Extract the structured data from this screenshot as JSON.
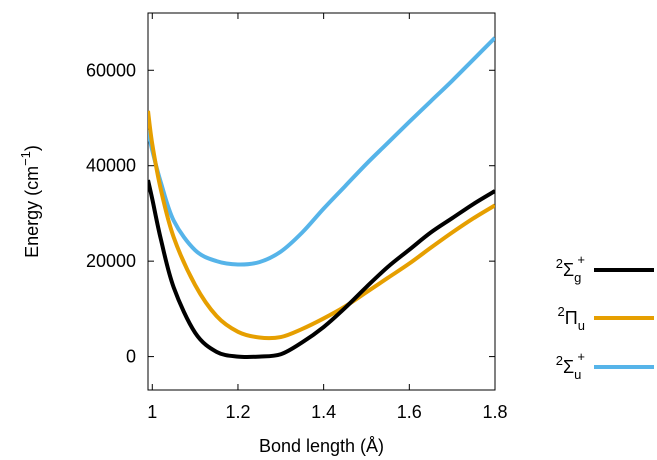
{
  "chart_data": {
    "type": "line",
    "title": "",
    "xlabel": "Bond length (Å)",
    "ylabel": "Energy (cm−1)",
    "ylabel_parts": {
      "main": "Energy (cm",
      "sup": "−1",
      "close": ")"
    },
    "xlim": [
      0.99,
      1.8
    ],
    "ylim": [
      -7000,
      72000
    ],
    "x_ticks": [
      1,
      1.2,
      1.4,
      1.6,
      1.8
    ],
    "x_tick_labels": [
      "1",
      "1.2",
      "1.4",
      "1.6",
      "1.8"
    ],
    "y_ticks": [
      0,
      20000,
      40000,
      60000
    ],
    "y_tick_labels": [
      "0",
      "20000",
      "40000",
      "60000"
    ],
    "grid": false,
    "legend_position": "outside-right",
    "series": [
      {
        "name": "2Σg+",
        "legend": {
          "pre": "2",
          "base": "Σ",
          "sub": "g",
          "sup": "+"
        },
        "color": "#000000",
        "x": [
          0.99,
          1.0,
          1.02,
          1.05,
          1.1,
          1.15,
          1.2,
          1.25,
          1.3,
          1.35,
          1.4,
          1.45,
          1.5,
          1.55,
          1.6,
          1.65,
          1.7,
          1.75,
          1.8
        ],
        "y": [
          37000,
          33000,
          24600,
          14500,
          5000,
          1000,
          0,
          0,
          500,
          3000,
          6200,
          10200,
          14600,
          18800,
          22400,
          26000,
          29000,
          32000,
          34700
        ]
      },
      {
        "name": "2Πu",
        "legend": {
          "pre": "2",
          "base": "Π",
          "sub": "u",
          "sup": ""
        },
        "color": "#e69f00",
        "x": [
          0.99,
          1.0,
          1.02,
          1.05,
          1.1,
          1.15,
          1.2,
          1.25,
          1.3,
          1.35,
          1.4,
          1.45,
          1.5,
          1.55,
          1.6,
          1.65,
          1.7,
          1.75,
          1.8
        ],
        "y": [
          51500,
          44500,
          35000,
          25000,
          15000,
          8500,
          5200,
          4000,
          4100,
          5800,
          8000,
          10500,
          13500,
          16500,
          19500,
          22800,
          26000,
          29000,
          31700
        ]
      },
      {
        "name": "2Σu+",
        "legend": {
          "pre": "2",
          "base": "Σ",
          "sub": "u",
          "sup": "+"
        },
        "color": "#56b4e9",
        "x": [
          0.99,
          1.0,
          1.02,
          1.05,
          1.1,
          1.15,
          1.2,
          1.25,
          1.3,
          1.35,
          1.4,
          1.45,
          1.5,
          1.55,
          1.6,
          1.65,
          1.7,
          1.75,
          1.8
        ],
        "y": [
          47500,
          43200,
          36500,
          28500,
          22300,
          20000,
          19300,
          19800,
          22000,
          26000,
          31000,
          35700,
          40400,
          44800,
          49200,
          53500,
          57800,
          62300,
          66800
        ]
      }
    ]
  }
}
